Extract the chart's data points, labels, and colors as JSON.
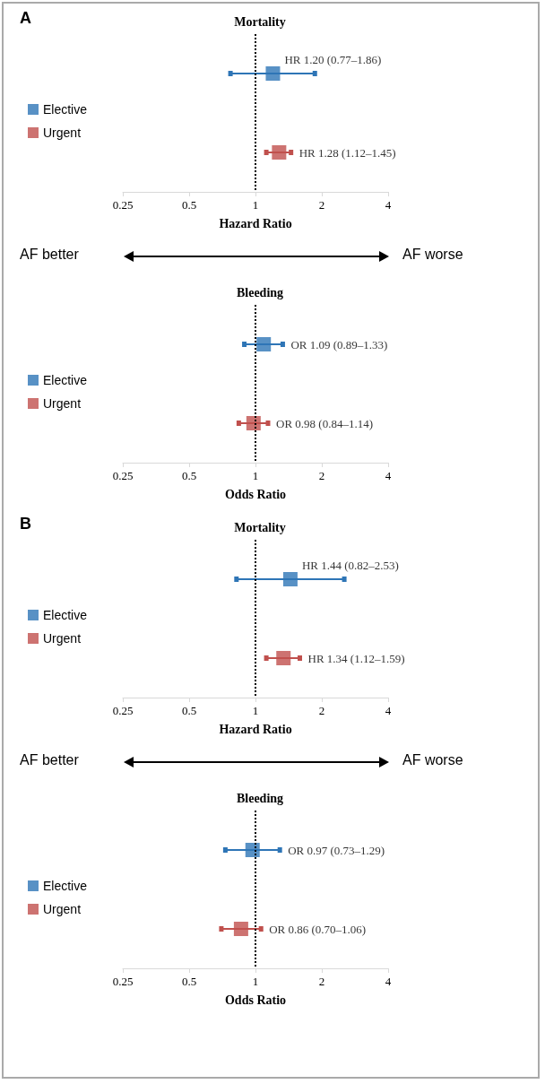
{
  "chart_data": [
    {
      "type": "scatter",
      "title": "Mortality",
      "xlabel": "Hazard Ratio",
      "annotations": [
        "A",
        "AF better",
        "AF worse"
      ],
      "categories": [
        null,
        null
      ],
      "orientation": "horizontal",
      "log": "x",
      "xlim": [
        0.25,
        4
      ],
      "xticks": [
        0.25,
        0.5,
        1,
        2,
        4
      ],
      "legend": "left",
      "marker": "square",
      "ref_lines": [
        {
          "axis": "x",
          "value": 1,
          "line_style": "dotted",
          "color": "#000000"
        }
      ],
      "series": [
        {
          "name": "Elective",
          "color": "#2e75b6",
          "values": [
            1.2,
            null
          ],
          "errors": [
            [
              0.77,
              1.86
            ],
            null
          ],
          "value_labels": [
            "HR 1.20 (0.77–1.86)",
            null
          ]
        },
        {
          "name": "Urgent",
          "color": "#c0504d",
          "values": [
            null,
            1.28
          ],
          "errors": [
            null,
            [
              1.12,
              1.45
            ]
          ],
          "value_labels": [
            null,
            "HR 1.28 (1.12–1.45)"
          ]
        }
      ]
    },
    {
      "type": "scatter",
      "title": "Bleeding",
      "xlabel": "Odds Ratio",
      "categories": [
        null,
        null
      ],
      "orientation": "horizontal",
      "log": "x",
      "xlim": [
        0.25,
        4
      ],
      "xticks": [
        0.25,
        0.5,
        1,
        2,
        4
      ],
      "legend": "left",
      "marker": "square",
      "ref_lines": [
        {
          "axis": "x",
          "value": 1,
          "line_style": "dotted",
          "color": "#000000"
        }
      ],
      "series": [
        {
          "name": "Elective",
          "color": "#2e75b6",
          "values": [
            1.09,
            null
          ],
          "errors": [
            [
              0.89,
              1.33
            ],
            null
          ],
          "value_labels": [
            "OR 1.09 (0.89–1.33)",
            null
          ]
        },
        {
          "name": "Urgent",
          "color": "#c0504d",
          "values": [
            null,
            0.98
          ],
          "errors": [
            null,
            [
              0.84,
              1.14
            ]
          ],
          "value_labels": [
            null,
            "OR 0.98 (0.84–1.14)"
          ]
        }
      ]
    },
    {
      "type": "scatter",
      "title": "Mortality",
      "xlabel": "Hazard Ratio",
      "annotations": [
        "B",
        "AF better",
        "AF worse"
      ],
      "categories": [
        null,
        null
      ],
      "orientation": "horizontal",
      "log": "x",
      "xlim": [
        0.25,
        4
      ],
      "xticks": [
        0.25,
        0.5,
        1,
        2,
        4
      ],
      "legend": "left",
      "marker": "square",
      "ref_lines": [
        {
          "axis": "x",
          "value": 1,
          "line_style": "dotted",
          "color": "#000000"
        }
      ],
      "series": [
        {
          "name": "Elective",
          "color": "#2e75b6",
          "values": [
            1.44,
            null
          ],
          "errors": [
            [
              0.82,
              2.53
            ],
            null
          ],
          "value_labels": [
            "HR 1.44 (0.82–2.53)",
            null
          ]
        },
        {
          "name": "Urgent",
          "color": "#c0504d",
          "values": [
            null,
            1.34
          ],
          "errors": [
            null,
            [
              1.12,
              1.59
            ]
          ],
          "value_labels": [
            null,
            "HR 1.34 (1.12–1.59)"
          ]
        }
      ]
    },
    {
      "type": "scatter",
      "title": "Bleeding",
      "xlabel": "Odds Ratio",
      "categories": [
        null,
        null
      ],
      "orientation": "horizontal",
      "log": "x",
      "xlim": [
        0.25,
        4
      ],
      "xticks": [
        0.25,
        0.5,
        1,
        2,
        4
      ],
      "legend": "left",
      "marker": "square",
      "ref_lines": [
        {
          "axis": "x",
          "value": 1,
          "line_style": "dotted",
          "color": "#000000"
        }
      ],
      "series": [
        {
          "name": "Elective",
          "color": "#2e75b6",
          "values": [
            0.97,
            null
          ],
          "errors": [
            [
              0.73,
              1.29
            ],
            null
          ],
          "value_labels": [
            "OR 0.97 (0.73–1.29)",
            null
          ]
        },
        {
          "name": "Urgent",
          "color": "#c0504d",
          "values": [
            null,
            0.86
          ],
          "errors": [
            null,
            [
              0.7,
              1.06
            ]
          ],
          "value_labels": [
            null,
            "OR 0.86 (0.70–1.06)"
          ]
        }
      ]
    }
  ]
}
